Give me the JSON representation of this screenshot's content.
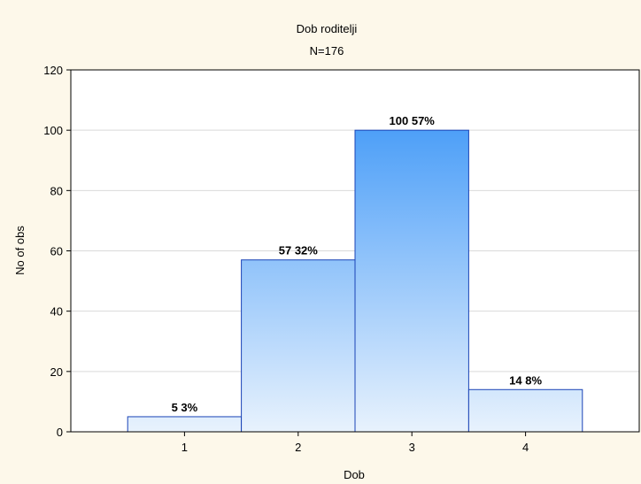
{
  "chart_data": {
    "type": "bar",
    "title": "Dob roditelji",
    "subtitle": "N=176",
    "xlabel": "Dob",
    "ylabel": "No of obs",
    "categories": [
      "1",
      "2",
      "3",
      "4"
    ],
    "values": [
      5,
      57,
      100,
      14
    ],
    "labels": [
      "5 3%",
      "57 32%",
      "100 57%",
      "14 8%"
    ],
    "ylim": [
      0,
      120
    ],
    "yticks": [
      "0",
      "20",
      "40",
      "60",
      "80",
      "100",
      "120"
    ],
    "grid": true,
    "colors": {
      "background": "#fdf8ea",
      "plot_background": "#ffffff",
      "bar_top": "#2f8ff7",
      "bar_bottom": "#e8f2fd",
      "bar_edge": "#1a43b6",
      "grid": "#d9d9d9"
    }
  }
}
